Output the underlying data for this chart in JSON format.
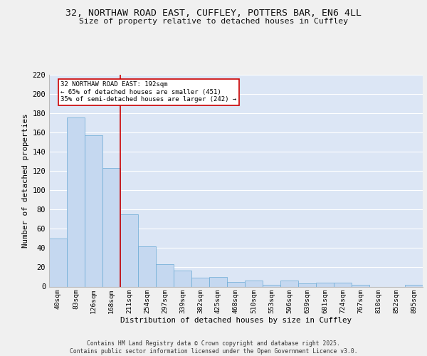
{
  "title": "32, NORTHAW ROAD EAST, CUFFLEY, POTTERS BAR, EN6 4LL",
  "subtitle": "Size of property relative to detached houses in Cuffley",
  "xlabel": "Distribution of detached houses by size in Cuffley",
  "ylabel": "Number of detached properties",
  "categories": [
    "40sqm",
    "83sqm",
    "126sqm",
    "168sqm",
    "211sqm",
    "254sqm",
    "297sqm",
    "339sqm",
    "382sqm",
    "425sqm",
    "468sqm",
    "510sqm",
    "553sqm",
    "596sqm",
    "639sqm",
    "681sqm",
    "724sqm",
    "767sqm",
    "810sqm",
    "852sqm",
    "895sqm"
  ],
  "values": [
    50,
    176,
    157,
    123,
    75,
    42,
    23,
    17,
    9,
    10,
    5,
    6,
    2,
    6,
    3,
    4,
    4,
    2,
    0,
    0,
    2
  ],
  "bar_color": "#c5d8f0",
  "bar_edge_color": "#6aaad4",
  "background_color": "#dce6f5",
  "grid_color": "#ffffff",
  "red_line_color": "#cc0000",
  "red_line_x": 3.5,
  "annotation_text": "32 NORTHAW ROAD EAST: 192sqm\n← 65% of detached houses are smaller (451)\n35% of semi-detached houses are larger (242) →",
  "annotation_box_color": "#ffffff",
  "annotation_box_edge": "#cc0000",
  "ylim": [
    0,
    220
  ],
  "yticks": [
    0,
    20,
    40,
    60,
    80,
    100,
    120,
    140,
    160,
    180,
    200,
    220
  ],
  "footer_line1": "Contains HM Land Registry data © Crown copyright and database right 2025.",
  "footer_line2": "Contains public sector information licensed under the Open Government Licence v3.0.",
  "fig_facecolor": "#f0f0f0"
}
